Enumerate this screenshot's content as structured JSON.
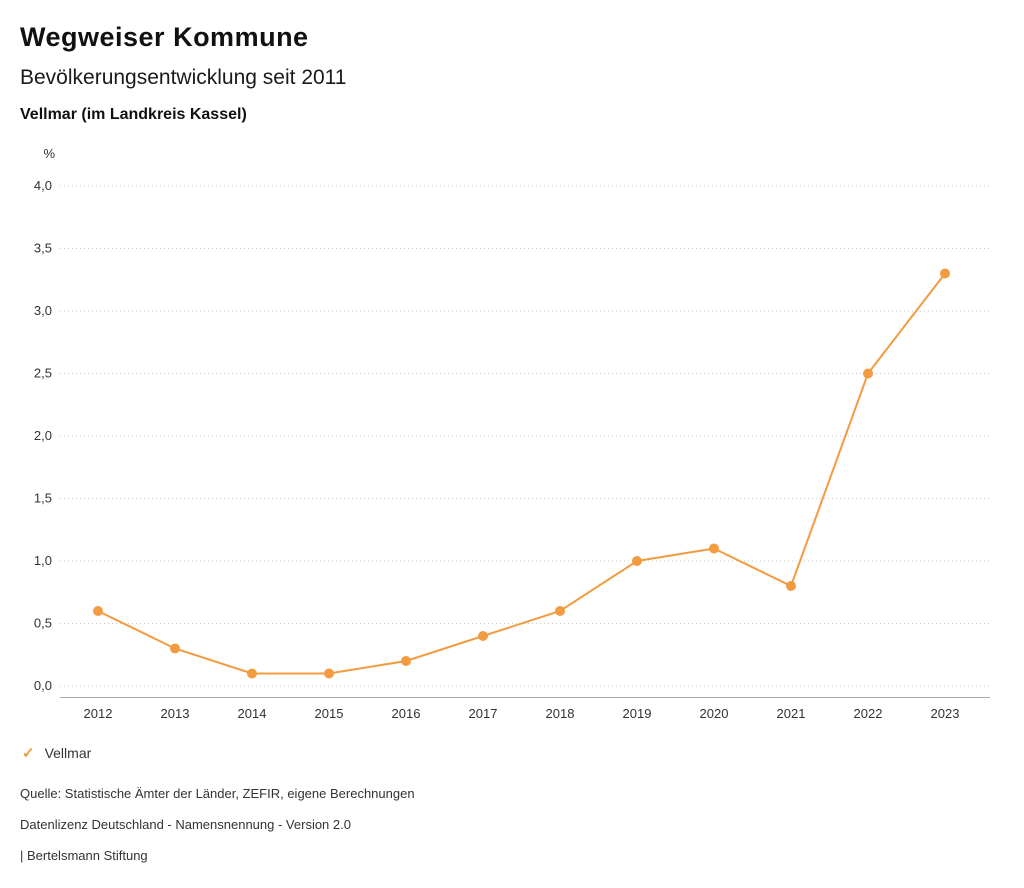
{
  "header": {
    "title": "Wegweiser Kommune",
    "subtitle": "Bevölkerungsentwicklung seit 2011",
    "location": "Vellmar (im Landkreis Kassel)"
  },
  "chart_data": {
    "type": "line",
    "title": "Bevölkerungsentwicklung seit 2011",
    "subtitle": "Vellmar (im Landkreis Kassel)",
    "unit_label": "%",
    "categories": [
      "2012",
      "2013",
      "2014",
      "2015",
      "2016",
      "2017",
      "2018",
      "2019",
      "2020",
      "2021",
      "2022",
      "2023"
    ],
    "series": [
      {
        "name": "Vellmar",
        "color": "#F29B40",
        "values": [
          0.6,
          0.3,
          0.1,
          0.1,
          0.2,
          0.4,
          0.6,
          1.0,
          1.1,
          0.8,
          2.5,
          3.3
        ]
      }
    ],
    "ylim": [
      0,
      4
    ],
    "ytick_step": 0.5,
    "ytick_labels": [
      "0,0",
      "0,5",
      "1,0",
      "1,5",
      "2,0",
      "2,5",
      "3,0",
      "3,5",
      "4,0"
    ],
    "grid": "dotted-horizontal",
    "legend_position": "bottom-left"
  },
  "legend": {
    "items": [
      {
        "label": "Vellmar",
        "color": "#F29B40",
        "marker_glyph": "✓"
      }
    ]
  },
  "footer": {
    "source": "Quelle: Statistische Ämter der Länder, ZEFIR, eigene Berechnungen",
    "license": "Datenlizenz Deutschland - Namensnennung - Version 2.0",
    "attribution": "| Bertelsmann Stiftung"
  }
}
